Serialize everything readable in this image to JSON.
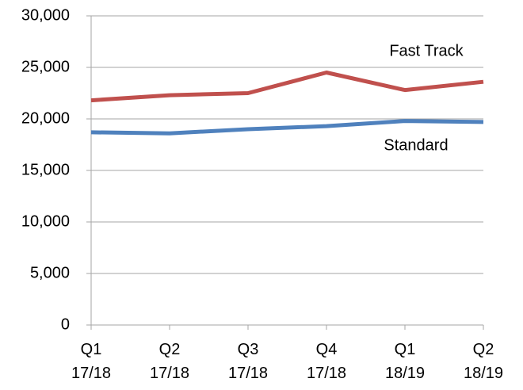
{
  "chart_data": {
    "type": "line",
    "categories": [
      [
        "Q1",
        "17/18"
      ],
      [
        "Q2",
        "17/18"
      ],
      [
        "Q3",
        "17/18"
      ],
      [
        "Q4",
        "17/18"
      ],
      [
        "Q1",
        "18/19"
      ],
      [
        "Q2",
        "18/19"
      ]
    ],
    "series": [
      {
        "name": "Fast Track",
        "color": "#c0504d",
        "values": [
          21800,
          22300,
          22500,
          24500,
          22800,
          23600
        ]
      },
      {
        "name": "Standard",
        "color": "#4f81bd",
        "values": [
          18700,
          18600,
          19000,
          19300,
          19800,
          19700
        ]
      }
    ],
    "ylim": [
      0,
      30000
    ],
    "yticks": [
      0,
      {
        "value": 5000,
        "label": "5,000"
      },
      {
        "value": 10000,
        "label": "10,000"
      },
      {
        "value": 15000,
        "label": "15,000"
      },
      {
        "value": 20000,
        "label": "20,000"
      },
      {
        "value": 25000,
        "label": "25,000"
      },
      {
        "value": 30000,
        "label": "30,000"
      }
    ],
    "grid": true
  }
}
